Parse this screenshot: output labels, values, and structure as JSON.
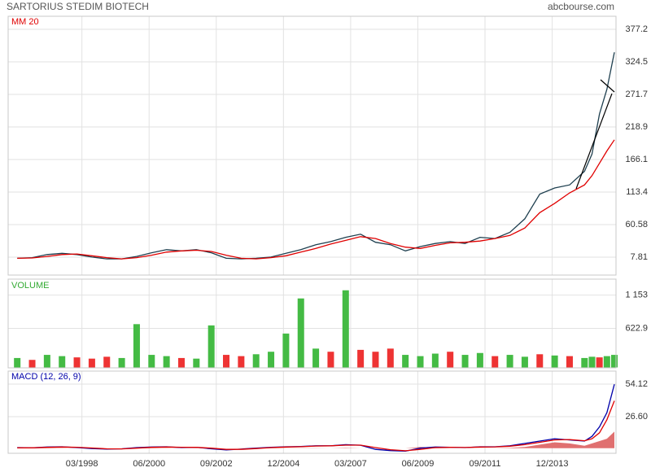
{
  "header": {
    "title": "SARTORIUS STEDIM BIOTECH",
    "source": "abcbourse.com"
  },
  "chart_data": [
    {
      "type": "line",
      "title": "MM 20",
      "x": [
        "01/1996",
        "07/1996",
        "01/1997",
        "07/1997",
        "01/1998",
        "07/1998",
        "01/1999",
        "07/1999",
        "01/2000",
        "07/2000",
        "01/2001",
        "07/2001",
        "01/2002",
        "07/2002",
        "01/2003",
        "07/2003",
        "01/2004",
        "07/2004",
        "01/2005",
        "07/2005",
        "01/2006",
        "07/2006",
        "01/2007",
        "07/2007",
        "01/2008",
        "07/2008",
        "01/2009",
        "07/2009",
        "01/2010",
        "07/2010",
        "01/2011",
        "07/2011",
        "01/2012",
        "07/2012",
        "01/2013",
        "07/2013",
        "01/2014",
        "07/2014",
        "01/2015",
        "04/2015",
        "07/2015",
        "10/2015",
        "01/2016"
      ],
      "xlim": [
        "10/1995",
        "01/2016"
      ],
      "series": [
        {
          "color": "#1e3f4f",
          "values": [
            6,
            7,
            12,
            14,
            12,
            8,
            5,
            5,
            9,
            15,
            20,
            18,
            20,
            15,
            6,
            5,
            6,
            8,
            14,
            20,
            28,
            33,
            40,
            45,
            32,
            28,
            18,
            25,
            30,
            33,
            30,
            40,
            38,
            48,
            70,
            110,
            120,
            125,
            147,
            175,
            240,
            280,
            340
          ]
        },
        {
          "name": "MM 20",
          "color": "#e00000",
          "values": [
            6,
            6.5,
            9,
            12,
            13,
            10,
            7,
            5,
            7,
            11,
            16,
            18,
            19,
            17,
            11,
            6,
            5,
            7,
            10,
            16,
            22,
            29,
            35,
            41,
            38,
            30,
            24,
            22,
            27,
            31,
            32,
            34,
            38,
            43,
            55,
            80,
            95,
            112,
            125,
            140,
            160,
            180,
            198
          ]
        }
      ],
      "ylim": [
        -21.2,
        398.3
      ],
      "yticks": [
        377.2,
        324.5,
        271.7,
        218.9,
        166.1,
        113.4,
        60.58,
        7.81
      ],
      "grid": true
    },
    {
      "type": "bar",
      "title": "VOLUME",
      "values": [
        150,
        120,
        200,
        180,
        160,
        140,
        170,
        150,
        690,
        200,
        180,
        150,
        140,
        670,
        200,
        180,
        210,
        250,
        540,
        1100,
        300,
        250,
        1230,
        280,
        250,
        300,
        200,
        180,
        220,
        250,
        200,
        230,
        180,
        200,
        170,
        210,
        190,
        180,
        150,
        170,
        160,
        180,
        200
      ],
      "colors": [
        "#44bb44",
        "#ee3333",
        "#44bb44",
        "#44bb44",
        "#ee3333",
        "#ee3333",
        "#ee3333",
        "#44bb44",
        "#44bb44",
        "#44bb44",
        "#44bb44",
        "#ee3333",
        "#44bb44",
        "#44bb44",
        "#ee3333",
        "#ee3333",
        "#44bb44",
        "#44bb44",
        "#44bb44",
        "#44bb44",
        "#44bb44",
        "#ee3333",
        "#44bb44",
        "#ee3333",
        "#ee3333",
        "#ee3333",
        "#44bb44",
        "#44bb44",
        "#44bb44",
        "#ee3333",
        "#44bb44",
        "#44bb44",
        "#ee3333",
        "#44bb44",
        "#44bb44",
        "#ee3333",
        "#44bb44",
        "#ee3333",
        "#44bb44",
        "#44bb44",
        "#ee3333",
        "#44bb44",
        "#44bb44"
      ],
      "ylim": [
        -6.8,
        1408
      ],
      "yticks": [
        {
          "value": 1153,
          "label": "1 153"
        },
        622.9
      ],
      "grid": true
    },
    {
      "type": "line",
      "title": "MACD (12, 26, 9)",
      "series": [
        {
          "color": "#0000aa",
          "values": [
            0.5,
            0.3,
            1,
            1.2,
            0.5,
            -0.3,
            -0.8,
            -0.5,
            0.5,
            1,
            1.2,
            0.5,
            0.8,
            -0.5,
            -1.5,
            -0.8,
            0,
            0.8,
            1.2,
            1.5,
            2,
            2,
            3,
            2.5,
            -1,
            -2,
            -2.5,
            0,
            1,
            0.8,
            0.5,
            1.2,
            1.2,
            2,
            4,
            6,
            8,
            7,
            6,
            10,
            18,
            30,
            54
          ]
        },
        {
          "color": "#e00000",
          "values": [
            0.3,
            0.3,
            0.7,
            1,
            0.8,
            0.2,
            -0.5,
            -0.6,
            0,
            0.7,
            1,
            0.8,
            0.7,
            0,
            -1,
            -1,
            -0.3,
            0.5,
            1,
            1.3,
            1.8,
            2,
            2.6,
            2.6,
            0.5,
            -1.3,
            -2.2,
            -1,
            0.5,
            0.8,
            0.6,
            1,
            1.1,
            1.7,
            3,
            5,
            7,
            7.3,
            6.3,
            8,
            13,
            24,
            40
          ]
        }
      ],
      "histogram": {
        "color": "#e07070",
        "values": [
          0.2,
          0,
          0.3,
          0.2,
          0,
          0,
          0,
          0,
          0.5,
          0.3,
          0.2,
          0,
          0.1,
          0,
          0,
          0.2,
          0.3,
          0.3,
          0.2,
          0.2,
          0.2,
          0,
          0.4,
          0,
          0,
          0,
          0,
          1,
          0.5,
          0,
          0,
          0.2,
          0.1,
          0.3,
          1,
          3,
          5,
          4,
          2,
          4,
          6,
          8,
          14
        ]
      },
      "xticks": [
        "03/1998",
        "06/2000",
        "09/2002",
        "12/2004",
        "03/2007",
        "06/2009",
        "09/2011",
        "12/2013"
      ],
      "ylim": [
        -4.3,
        65.1
      ],
      "yticks": [
        54.12,
        {
          "value": 26.6,
          "label": "26.60"
        }
      ],
      "grid": true
    }
  ]
}
